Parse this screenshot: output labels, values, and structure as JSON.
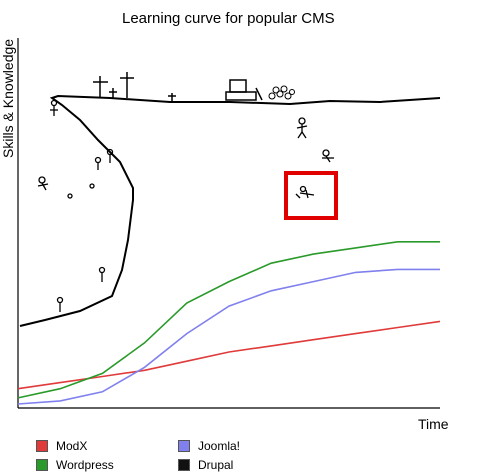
{
  "chart_data": {
    "type": "line",
    "title": "Learning curve for popular CMS",
    "xlabel": "Time",
    "ylabel": "Skills & Knowledge",
    "x": [
      0,
      1,
      2,
      3,
      4,
      5,
      6,
      7,
      8,
      9,
      10
    ],
    "xlim": [
      0,
      10
    ],
    "ylim": [
      0,
      100
    ],
    "grid": false,
    "legend_position": "bottom",
    "series": [
      {
        "name": "ModX",
        "color": "#e03a3a",
        "values": [
          5,
          7,
          9,
          11,
          14,
          17,
          19,
          21,
          23,
          25,
          27
        ]
      },
      {
        "name": "Wordpress",
        "color": "#2a9a2a",
        "values": [
          2,
          5,
          10,
          20,
          33,
          40,
          46,
          49,
          51,
          53,
          53
        ]
      },
      {
        "name": "Joomla!",
        "color": "#8080ee",
        "values": [
          0,
          1,
          4,
          12,
          23,
          32,
          37,
          40,
          43,
          44,
          44
        ]
      },
      {
        "name": "Drupal",
        "color": "#111111",
        "values": [
          35,
          38,
          41,
          62,
          86,
          91,
          94,
          95,
          95,
          96,
          97
        ]
      }
    ]
  }
}
